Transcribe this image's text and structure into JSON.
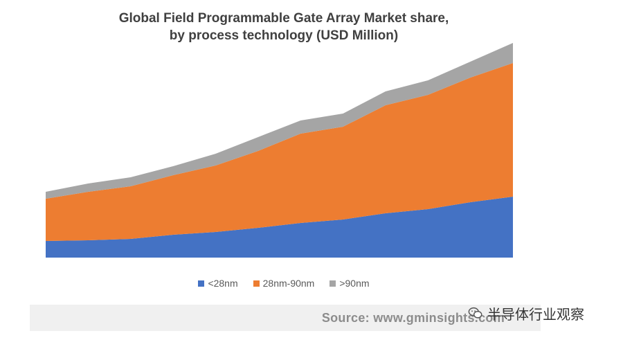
{
  "colors": {
    "lt28": "#4472c4",
    "mid": "#ed7d31",
    "gt90": "#a5a5a5",
    "text": "#404040",
    "legend_text": "#595959",
    "source_bg": "#f0f0f0",
    "source_text": "#8c8c8c"
  },
  "chart_data": {
    "type": "area",
    "stacked": true,
    "title": "Global Field Programmable Gate Array Market share,\nby process technology (USD Million)",
    "title_lines": [
      "Global Field Programmable Gate Array Market share,",
      "by process technology (USD Million)"
    ],
    "x": [
      1,
      2,
      3,
      4,
      5,
      6,
      7,
      8,
      9,
      10,
      11,
      12
    ],
    "x_labels_shown": false,
    "y_axis_shown": false,
    "grid": false,
    "legend_position": "bottom",
    "ylim": [
      0,
      320
    ],
    "series": [
      {
        "name": "<28nm",
        "color": "#4472c4",
        "values": [
          24,
          25,
          27,
          33,
          37,
          43,
          50,
          55,
          64,
          70,
          80,
          88
        ]
      },
      {
        "name": "28nm-90nm",
        "color": "#ed7d31",
        "values": [
          61,
          70,
          76,
          86,
          96,
          111,
          129,
          134,
          156,
          165,
          180,
          193
        ]
      },
      {
        "name": ">90nm",
        "color": "#a5a5a5",
        "values": [
          10,
          12,
          13,
          13,
          17,
          20,
          19,
          19,
          20,
          21,
          23,
          29
        ]
      }
    ]
  },
  "source": "Source: www.gminsights.com",
  "watermark": "半导体行业观察"
}
